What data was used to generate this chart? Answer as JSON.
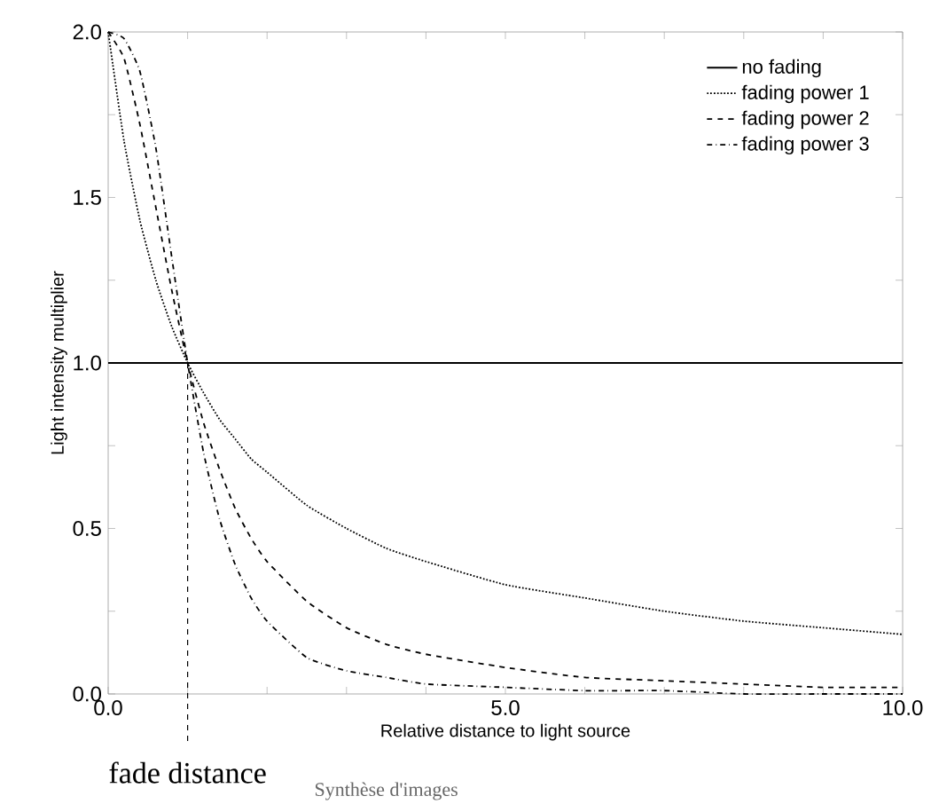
{
  "chart_data": {
    "type": "line",
    "xlabel": "Relative distance to light source",
    "ylabel": "Light intensity multiplier",
    "xlim": [
      0,
      10
    ],
    "ylim": [
      0,
      2
    ],
    "xticks": [
      {
        "value": 0,
        "label": "0.0"
      },
      {
        "value": 1,
        "label": null
      },
      {
        "value": 2,
        "label": null
      },
      {
        "value": 3,
        "label": null
      },
      {
        "value": 4,
        "label": null
      },
      {
        "value": 5,
        "label": "5.0"
      },
      {
        "value": 6,
        "label": null
      },
      {
        "value": 7,
        "label": null
      },
      {
        "value": 8,
        "label": null
      },
      {
        "value": 9,
        "label": null
      },
      {
        "value": 10,
        "label": "10.0"
      }
    ],
    "yticks": [
      {
        "value": 0,
        "label": "0.0"
      },
      {
        "value": 0.25,
        "label": null
      },
      {
        "value": 0.5,
        "label": "0.5"
      },
      {
        "value": 0.75,
        "label": null
      },
      {
        "value": 1,
        "label": "1.0"
      },
      {
        "value": 1.25,
        "label": null
      },
      {
        "value": 1.5,
        "label": "1.5"
      },
      {
        "value": 1.75,
        "label": null
      },
      {
        "value": 2,
        "label": "2.0"
      }
    ],
    "legend": "top right",
    "grid": false,
    "marker": "none",
    "series": [
      {
        "name": "no fading",
        "color": "#000000",
        "line_style": "solid",
        "x": [
          0,
          10
        ],
        "values": [
          1,
          1
        ]
      },
      {
        "name": "fading power 1",
        "color": "#000000",
        "line_style": "dotted",
        "x": [
          0,
          0.2,
          0.4,
          0.6,
          0.8,
          1,
          1.2,
          1.4,
          1.6,
          1.8,
          2,
          2.5,
          3,
          3.5,
          4,
          5,
          6,
          7,
          8,
          9,
          10
        ],
        "values": [
          2,
          1.67,
          1.43,
          1.25,
          1.11,
          1,
          0.91,
          0.83,
          0.77,
          0.71,
          0.67,
          0.57,
          0.5,
          0.44,
          0.4,
          0.33,
          0.29,
          0.25,
          0.22,
          0.2,
          0.18
        ]
      },
      {
        "name": "fading power 2",
        "color": "#000000",
        "line_style": "dashed",
        "x": [
          0,
          0.2,
          0.4,
          0.6,
          0.8,
          1,
          1.2,
          1.4,
          1.6,
          1.8,
          2,
          2.5,
          3,
          3.5,
          4,
          5,
          6,
          7,
          8,
          9,
          10
        ],
        "values": [
          2,
          1.92,
          1.72,
          1.47,
          1.22,
          1,
          0.82,
          0.68,
          0.56,
          0.47,
          0.4,
          0.28,
          0.2,
          0.15,
          0.12,
          0.08,
          0.05,
          0.04,
          0.03,
          0.02,
          0.02
        ]
      },
      {
        "name": "fading power 3",
        "color": "#000000",
        "line_style": "dashdot",
        "x": [
          0,
          0.2,
          0.4,
          0.6,
          0.8,
          1,
          1.2,
          1.4,
          1.6,
          1.8,
          2,
          2.5,
          3,
          3.5,
          4,
          5,
          6,
          7,
          8,
          9,
          10
        ],
        "values": [
          2,
          1.98,
          1.88,
          1.65,
          1.32,
          1,
          0.73,
          0.53,
          0.39,
          0.29,
          0.22,
          0.11,
          0.07,
          0.05,
          0.03,
          0.02,
          0.01,
          0.01,
          0,
          0,
          0
        ]
      }
    ],
    "ref_lines": [
      {
        "axis": "x",
        "value": 1,
        "label": "fade distance",
        "line_style": "dashed",
        "color": "#000000"
      }
    ],
    "annotations": [
      "Synthèse d'images"
    ]
  }
}
